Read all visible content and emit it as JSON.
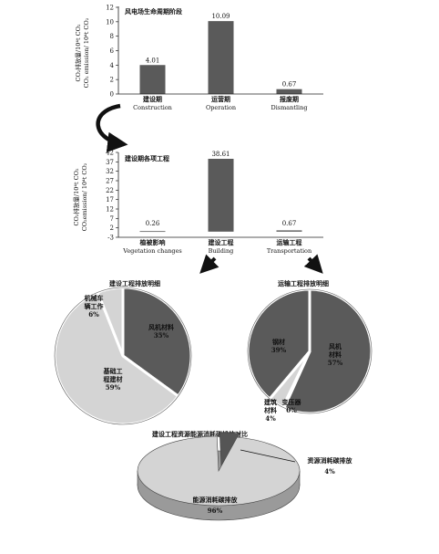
{
  "colors": {
    "bar": "#5a5a5a",
    "pie_dark": "#5a5a5a",
    "pie_light": "#d4d4d4",
    "pie_gap": "#ffffff",
    "text": "#111111"
  },
  "chart_data": [
    {
      "type": "bar",
      "id": "lifecycle",
      "title": "风电场生命周期阶段",
      "ylabel": [
        "CO₂排放量/10⁴t CO₂",
        "CO₂ emission/ 10⁴t CO₂"
      ],
      "ylim": [
        0,
        12
      ],
      "yticks": [
        0,
        2,
        4,
        6,
        8,
        10,
        12
      ],
      "categories": [
        {
          "cn": "建设期",
          "en": "Construction"
        },
        {
          "cn": "运营期",
          "en": "Operation"
        },
        {
          "cn": "报废期",
          "en": "Dismantling"
        }
      ],
      "values": [
        4.01,
        10.09,
        0.67
      ],
      "data_labels": [
        "4.01",
        "10.09",
        "0.67"
      ]
    },
    {
      "type": "bar",
      "id": "construction",
      "title": "建设期各项工程",
      "ylabel": [
        "CO₂排放量/10⁴t CO₂",
        "CO₂emission/ 10⁴t CO₂"
      ],
      "ylim": [
        -3,
        42
      ],
      "yticks": [
        -3,
        2,
        7,
        12,
        17,
        22,
        27,
        32,
        37,
        42
      ],
      "categories": [
        {
          "cn": "植被影响",
          "en": "Vegetation changes"
        },
        {
          "cn": "建设工程",
          "en": "Building"
        },
        {
          "cn": "运输工程",
          "en": "Transportation"
        }
      ],
      "values": [
        0.26,
        38.61,
        0.67
      ],
      "data_labels": [
        "0.26",
        "38.61",
        "0.67"
      ]
    },
    {
      "type": "pie",
      "id": "building",
      "title": "建设工程排放明细",
      "slices": [
        {
          "label": [
            "风机材料",
            "35%"
          ],
          "value": 35,
          "color": "dark"
        },
        {
          "label": [
            "基础工",
            "程建材",
            "59%"
          ],
          "value": 59,
          "color": "light"
        },
        {
          "label": [
            "机械车",
            "辆工作",
            "6%"
          ],
          "value": 6,
          "color": "light"
        }
      ]
    },
    {
      "type": "pie",
      "id": "transport",
      "title": "运输工程排放明细",
      "slices": [
        {
          "label": [
            "风机",
            "材料",
            "57%"
          ],
          "value": 57,
          "color": "dark"
        },
        {
          "label": [
            "变压器",
            "0%"
          ],
          "value": 0.4,
          "color": "light"
        },
        {
          "label": [
            "建筑",
            "材料",
            "4%"
          ],
          "value": 4,
          "color": "light"
        },
        {
          "label": [
            "钢材",
            "39%"
          ],
          "value": 39,
          "color": "dark"
        }
      ]
    },
    {
      "type": "pie",
      "id": "resource",
      "title": "建设工程资源能源消耗碳排放对比",
      "slices": [
        {
          "label": [
            "资源消耗碳排放",
            "4%"
          ],
          "value": 4,
          "color": "dark"
        },
        {
          "label": [
            "能源消耗碳排放",
            "96%"
          ],
          "value": 96,
          "color": "light"
        }
      ]
    }
  ]
}
